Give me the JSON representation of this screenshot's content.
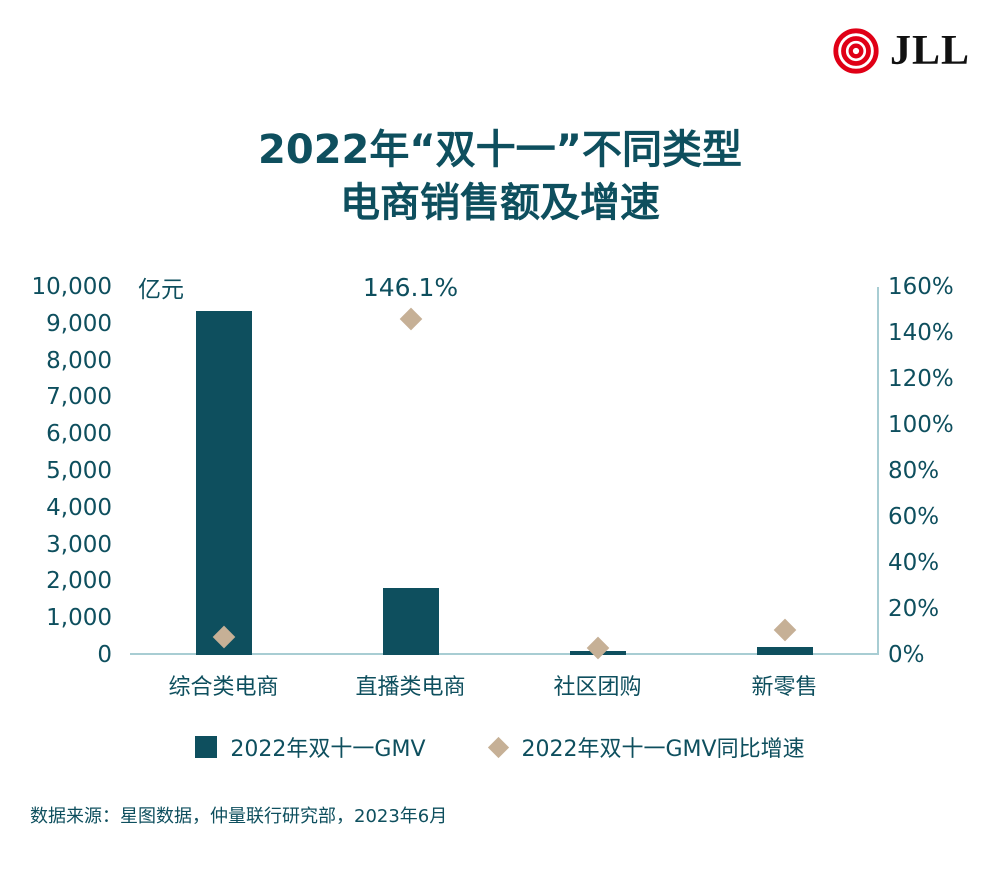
{
  "logo": {
    "text": "JLL"
  },
  "title": {
    "line1": "2022年“双十一”不同类型",
    "line2": "电商销售额及增速"
  },
  "source": "数据来源：星图数据，仲量联行研究部，2023年6月",
  "colors": {
    "teal": "#0e4f5e",
    "bar": "#0e4f5e",
    "diamond": "#c6b096",
    "axis_line": "#a8cdd3",
    "logo_red": "#e00016",
    "logo_text": "#111111"
  },
  "chart_data": {
    "type": "bar",
    "title": "2022年“双十一”不同类型电商销售额及增速",
    "categories": [
      "综合类电商",
      "直播类电商",
      "社区团购",
      "新零售"
    ],
    "series": [
      {
        "name": "2022年双十一GMV",
        "type": "bar",
        "axis": "left",
        "unit": "亿元",
        "values": [
          9340,
          1814,
          120,
          218
        ]
      },
      {
        "name": "2022年双十一GMV同比增速",
        "type": "scatter",
        "marker": "diamond",
        "axis": "right",
        "unit": "%",
        "values": [
          8,
          146.1,
          3,
          11
        ]
      }
    ],
    "left_axis": {
      "label": "亿元",
      "min": 0,
      "max": 10000,
      "step": 1000,
      "tick_labels": [
        "10,000",
        "9,000",
        "8,000",
        "7,000",
        "6,000",
        "5,000",
        "4,000",
        "3,000",
        "2,000",
        "1,000",
        "0"
      ]
    },
    "right_axis": {
      "min": 0,
      "max": 160,
      "step": 20,
      "tick_labels": [
        "160%",
        "140%",
        "120%",
        "100%",
        "80%",
        "60%",
        "40%",
        "20%",
        "0%"
      ]
    },
    "annotations": [
      {
        "text": "146.1%",
        "category_index": 1,
        "series_index": 1
      }
    ],
    "legend_position": "bottom",
    "grid": false
  }
}
